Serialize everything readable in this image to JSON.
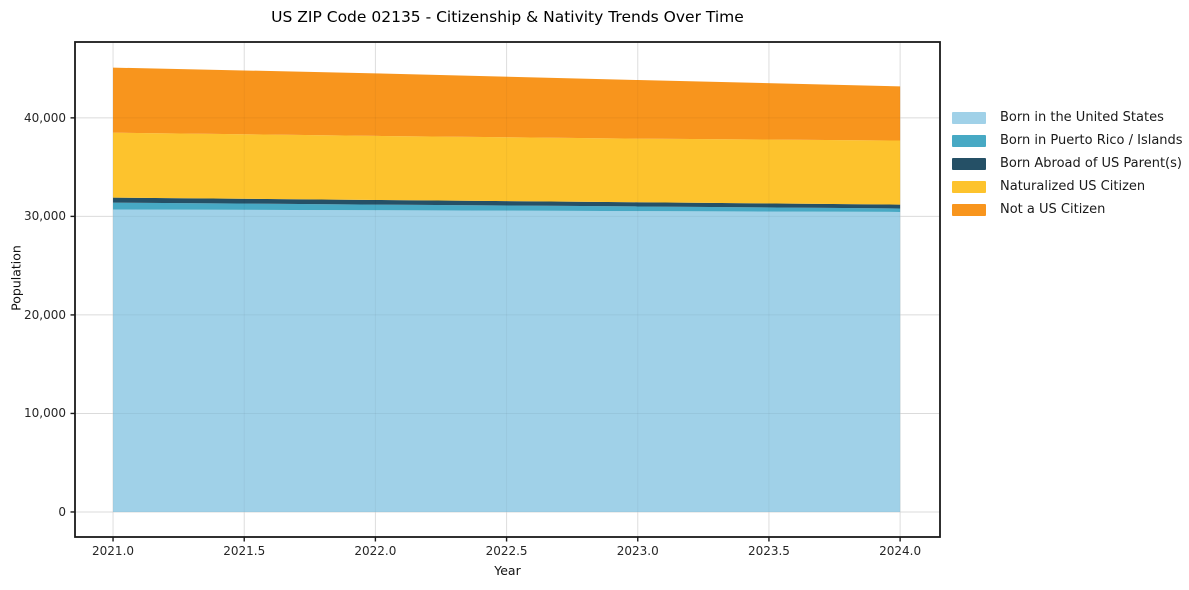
{
  "chart_data": {
    "type": "area",
    "stacked": true,
    "title": "US ZIP Code 02135 - Citizenship & Nativity Trends Over Time",
    "xlabel": "Year",
    "ylabel": "Population",
    "x": [
      2021.0,
      2022.0,
      2023.0,
      2024.0
    ],
    "series": [
      {
        "name": "Born in the United States",
        "color": "#a0d1e8",
        "values": [
          30700,
          30620,
          30540,
          30450
        ]
      },
      {
        "name": "Born in Puerto Rico / Islands",
        "color": "#47a9c4",
        "values": [
          700,
          580,
          470,
          350
        ]
      },
      {
        "name": "Born Abroad of US Parent(s)",
        "color": "#255066",
        "values": [
          500,
          470,
          430,
          400
        ]
      },
      {
        "name": "Naturalized US Citizen",
        "color": "#fdc32d",
        "values": [
          6600,
          6500,
          6450,
          6500
        ]
      },
      {
        "name": "Not a US Citizen",
        "color": "#f8951d",
        "values": [
          6600,
          6350,
          5950,
          5500
        ]
      }
    ],
    "stacked_totals": [
      45100,
      44520,
      43840,
      43200
    ],
    "xticks": {
      "values": [
        2021.0,
        2021.5,
        2022.0,
        2022.5,
        2023.0,
        2023.5,
        2024.0
      ],
      "labels": [
        "2021.0",
        "2021.5",
        "2022.0",
        "2022.5",
        "2023.0",
        "2023.5",
        "2024.0"
      ]
    },
    "yticks": {
      "values": [
        0,
        10000,
        20000,
        30000,
        40000
      ],
      "labels": [
        "0",
        "10,000",
        "20,000",
        "30,000",
        "40,000"
      ]
    },
    "xlim": [
      2020.855,
      2024.152
    ],
    "ylim": [
      -2540,
      47700
    ],
    "grid": true,
    "legend_position": "right-outside",
    "colors": {
      "spine": "#1a1a1a",
      "grid": "#e7e7e7",
      "tick_text": "#262626",
      "background": "#ffffff"
    }
  }
}
